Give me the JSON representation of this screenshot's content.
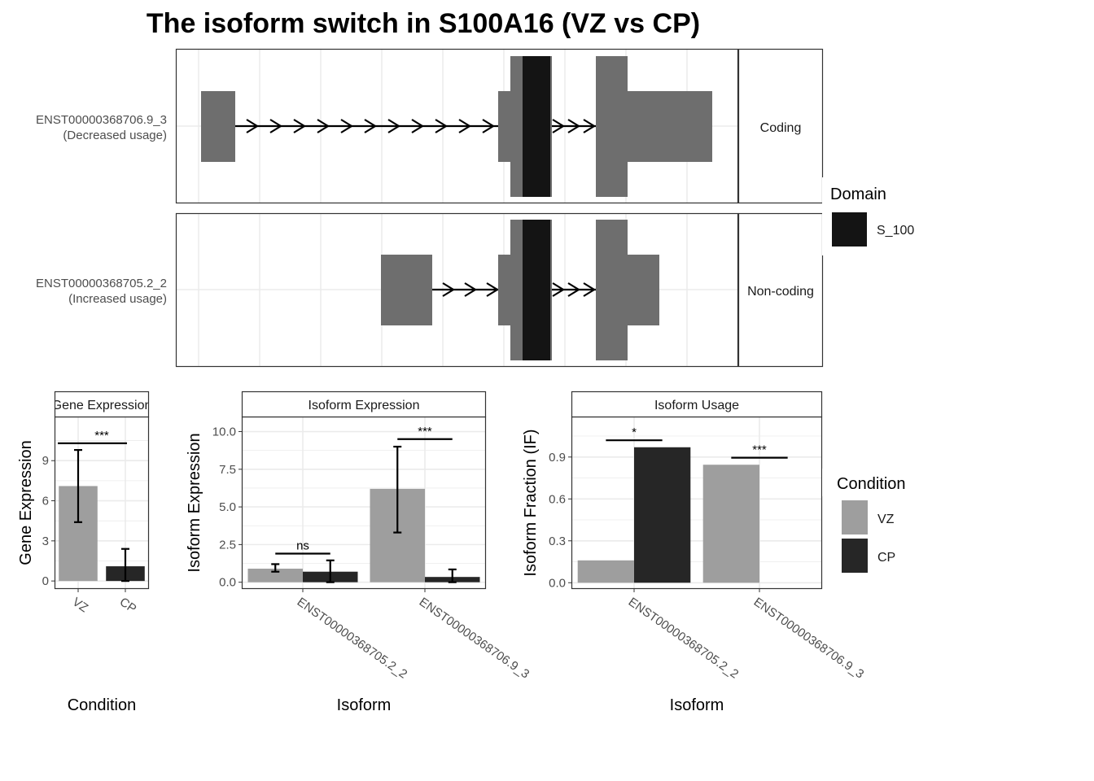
{
  "title": "The isoform switch in S100A16 (VZ vs CP)",
  "colors": {
    "exon": "#6e6e6e",
    "domain": "#141414",
    "vz": "#9e9e9e",
    "cp": "#262626",
    "grid": "#ebebeb",
    "panel_border": "#333333",
    "strip_fill": "#ffffff"
  },
  "transcripts": [
    {
      "id": "ENST00000368706.9_3",
      "note": "(Decreased usage)",
      "strip": "Coding"
    },
    {
      "id": "ENST00000368705.2_2",
      "note": "(Increased usage)",
      "strip": "Non-coding"
    }
  ],
  "domain_legend": {
    "title": "Domain",
    "items": [
      {
        "label": "S_100",
        "color": "#141414"
      }
    ]
  },
  "condition_legend": {
    "title": "Condition",
    "items": [
      {
        "label": "VZ",
        "color": "#9e9e9e"
      },
      {
        "label": "CP",
        "color": "#262626"
      }
    ]
  },
  "chart_data": [
    {
      "type": "bar",
      "strip": "Gene Expression",
      "categories": [
        "VZ",
        "CP"
      ],
      "values": [
        7.1,
        1.1
      ],
      "errors": [
        [
          4.4,
          9.8
        ],
        [
          0.0,
          2.4
        ]
      ],
      "xlabel": "Condition",
      "ylabel": "Gene Expression",
      "ylim": [
        -0.6,
        12.3
      ],
      "yticks": [
        "0",
        "3",
        "6",
        "9"
      ],
      "significance": [
        {
          "label": "***",
          "value": 10.3
        }
      ],
      "grid": true
    },
    {
      "type": "bar",
      "strip": "Isoform Expression",
      "categories": [
        "ENST00000368705.2_2",
        "ENST00000368706.9_3"
      ],
      "series": [
        {
          "name": "VZ",
          "values": [
            0.9,
            6.2
          ],
          "errors": [
            [
              0.7,
              1.2
            ],
            [
              3.3,
              9.0
            ]
          ]
        },
        {
          "name": "CP",
          "values": [
            0.7,
            0.35
          ],
          "errors": [
            [
              0.0,
              1.45
            ],
            [
              0.0,
              0.85
            ]
          ]
        }
      ],
      "xlabel": "Isoform",
      "ylabel": "Isoform Expression",
      "ylim": [
        -0.45,
        11.0
      ],
      "yticks": [
        "0.0",
        "2.5",
        "5.0",
        "7.5",
        "10.0"
      ],
      "significance": [
        {
          "label": "ns",
          "value": 1.9
        },
        {
          "label": "***",
          "value": 9.5
        }
      ],
      "grid": true
    },
    {
      "type": "bar",
      "strip": "Isoform Usage",
      "categories": [
        "ENST00000368705.2_2",
        "ENST00000368706.9_3"
      ],
      "series": [
        {
          "name": "VZ",
          "values": [
            0.16,
            0.845
          ]
        },
        {
          "name": "CP",
          "values": [
            0.97,
            0.0
          ]
        }
      ],
      "xlabel": "Isoform",
      "ylabel": "Isoform Fraction (IF)",
      "ylim": [
        -0.045,
        1.19
      ],
      "yticks": [
        "0.0",
        "0.3",
        "0.6",
        "0.9"
      ],
      "significance": [
        {
          "label": "*",
          "value": 1.02
        },
        {
          "label": "***",
          "value": 0.895
        }
      ],
      "grid": true
    }
  ]
}
